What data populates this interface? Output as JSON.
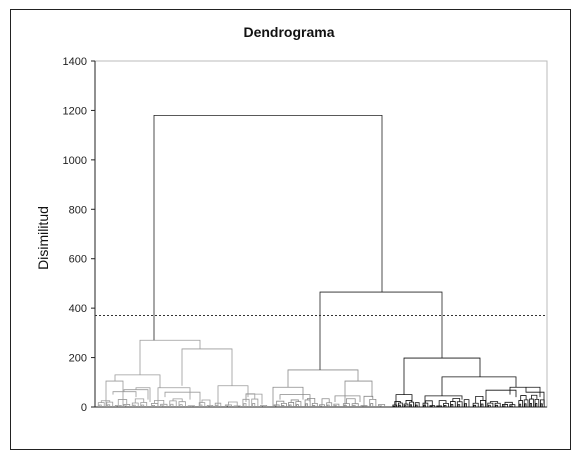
{
  "chart_data": {
    "type": "dendrogram",
    "title": "Dendrograma",
    "xlabel": "",
    "ylabel": "Disimilitud",
    "ylim": [
      0,
      1400
    ],
    "yticks": [
      0,
      200,
      400,
      600,
      800,
      1000,
      1200,
      1400
    ],
    "cut_line": 370,
    "grid": false,
    "legend": "none",
    "main_merges": [
      {
        "name": "root",
        "height": 1180
      },
      {
        "name": "right-cluster",
        "height": 465
      },
      {
        "name": "left-cluster",
        "height": 270
      },
      {
        "name": "left-sub-b",
        "height": 235
      },
      {
        "name": "right-sub-c",
        "height": 198
      },
      {
        "name": "middle-sub",
        "height": 150
      },
      {
        "name": "right-sub-c2",
        "height": 122
      },
      {
        "name": "left-sub-a1",
        "height": 105
      },
      {
        "name": "middle-sub-b",
        "height": 105
      }
    ],
    "colors": {
      "cluster1": "#9a9a9a",
      "cluster2": "#8a8a8a",
      "cluster3": "#111111",
      "axis": "#222222",
      "cut_line": "#333333"
    }
  }
}
